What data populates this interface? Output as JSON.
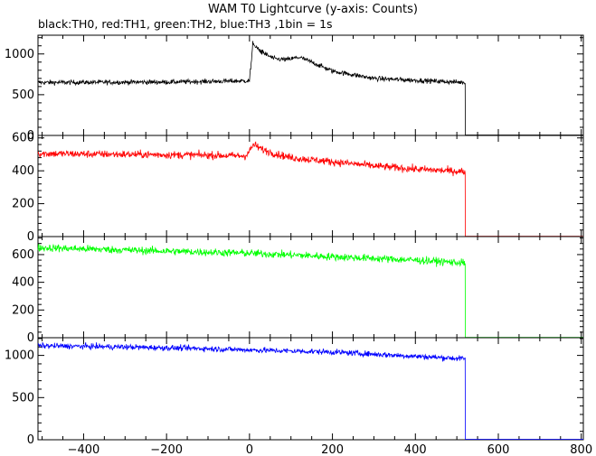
{
  "chart_data": {
    "type": "line",
    "title": "WAM T0 Lightcurve (y-axis: Counts)",
    "subtitle": "black:TH0, red:TH1, green:TH2, blue:TH3 ,1bin = 1s",
    "xlabel": "",
    "ylabel": "",
    "xlim": [
      -510,
      805
    ],
    "x_ticks": [
      -400,
      -200,
      0,
      200,
      400,
      600,
      800
    ],
    "grid": false,
    "legend": "none",
    "panels": [
      {
        "name": "TH0",
        "color": "#000000",
        "ylim": [
          0,
          1230
        ],
        "y_ticks": [
          0,
          500,
          1000
        ],
        "x_end": 520,
        "noise": 28,
        "profile": [
          [
            -510,
            650
          ],
          [
            -200,
            655
          ],
          [
            0,
            670
          ],
          [
            8,
            1120
          ],
          [
            30,
            1020
          ],
          [
            60,
            940
          ],
          [
            90,
            930
          ],
          [
            120,
            960
          ],
          [
            150,
            900
          ],
          [
            200,
            790
          ],
          [
            300,
            700
          ],
          [
            520,
            650
          ]
        ],
        "tail_value": 5
      },
      {
        "name": "TH1",
        "color": "#ff0000",
        "ylim": [
          0,
          615
        ],
        "y_ticks": [
          0,
          200,
          400,
          600
        ],
        "x_end": 520,
        "noise": 22,
        "profile": [
          [
            -510,
            505
          ],
          [
            -100,
            495
          ],
          [
            -10,
            490
          ],
          [
            0,
            520
          ],
          [
            10,
            560
          ],
          [
            30,
            530
          ],
          [
            60,
            505
          ],
          [
            100,
            480
          ],
          [
            200,
            455
          ],
          [
            300,
            430
          ],
          [
            400,
            410
          ],
          [
            520,
            395
          ]
        ],
        "tail_value": 2
      },
      {
        "name": "TH2",
        "color": "#00ff00",
        "ylim": [
          0,
          730
        ],
        "y_ticks": [
          0,
          200,
          400,
          600
        ],
        "x_end": 520,
        "noise": 26,
        "profile": [
          [
            -510,
            650
          ],
          [
            -200,
            625
          ],
          [
            0,
            610
          ],
          [
            200,
            585
          ],
          [
            400,
            560
          ],
          [
            520,
            540
          ]
        ],
        "tail_value": 2
      },
      {
        "name": "TH3",
        "color": "#0000ff",
        "ylim": [
          0,
          1210
        ],
        "y_ticks": [
          0,
          500,
          1000
        ],
        "x_end": 520,
        "noise": 32,
        "profile": [
          [
            -510,
            1115
          ],
          [
            -300,
            1100
          ],
          [
            -100,
            1080
          ],
          [
            0,
            1065
          ],
          [
            200,
            1040
          ],
          [
            400,
            990
          ],
          [
            520,
            960
          ]
        ],
        "tail_value": 5
      }
    ]
  }
}
